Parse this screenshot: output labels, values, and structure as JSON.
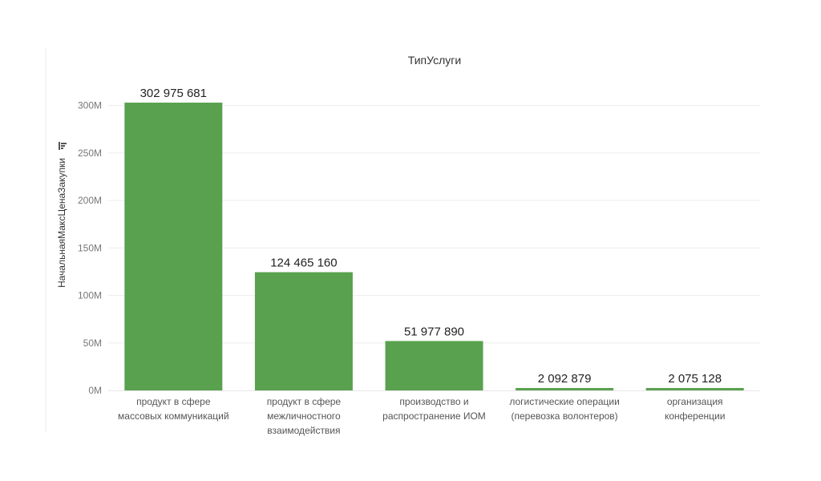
{
  "chart_data": {
    "type": "bar",
    "title": "ТипУслуги",
    "ylabel": "НачальнаяМаксЦенаЗакупки",
    "ylabel_icon": "sort-descending-icon",
    "categories": [
      [
        "продукт в сфере",
        "массовых коммуникаций"
      ],
      [
        "продукт в сфере",
        "межличностного",
        "взаимодействия"
      ],
      [
        "производство и",
        "распространение ИОМ"
      ],
      [
        "логистические операции",
        "(перевозка волонтеров)"
      ],
      [
        "организация",
        "конференции"
      ]
    ],
    "values": [
      302975681,
      124465160,
      51977890,
      2092879,
      2075128
    ],
    "data_labels": [
      "302 975 681",
      "124 465 160",
      "51 977 890",
      "2 092 879",
      "2 075 128"
    ],
    "yticks": [
      0,
      50000000,
      100000000,
      150000000,
      200000000,
      250000000,
      300000000
    ],
    "ytick_labels": [
      "0M",
      "50M",
      "100M",
      "150M",
      "200M",
      "250M",
      "300M"
    ],
    "ylim": [
      0,
      330000000
    ],
    "grid": true,
    "colors": {
      "bar": "#59a14f",
      "grid": "#eeeeee",
      "axis_text": "#777777",
      "label_text": "#222222"
    }
  }
}
